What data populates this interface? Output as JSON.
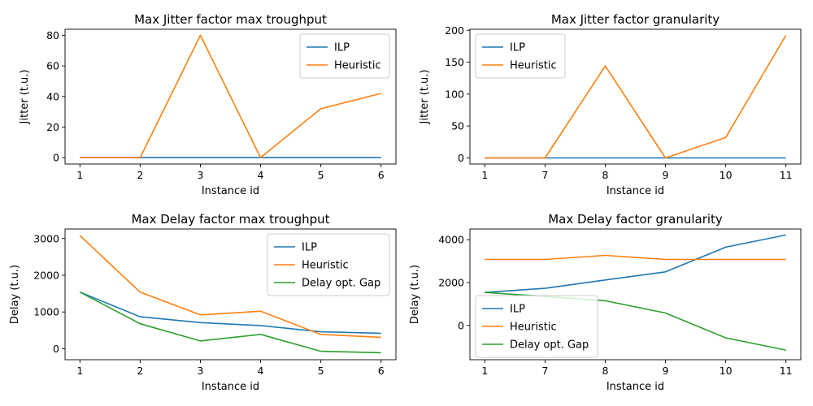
{
  "chart_data": [
    {
      "type": "line",
      "title": "Max Jitter factor max troughput",
      "xlabel": "Instance id",
      "ylabel": "Jitter (t.u.)",
      "x": [
        "1",
        "2",
        "3",
        "4",
        "5",
        "6"
      ],
      "ylim": [
        -4.2,
        84
      ],
      "yticks": [
        0,
        20,
        40,
        60,
        80
      ],
      "legend_position": "upper right",
      "series": [
        {
          "name": "ILP",
          "color": "#1f77b4",
          "values": [
            0,
            0,
            0,
            0,
            0,
            0
          ]
        },
        {
          "name": "Heuristic",
          "color": "#ff7f0e",
          "values": [
            0,
            0,
            80,
            0,
            32,
            42
          ]
        }
      ]
    },
    {
      "type": "line",
      "title": "Max Jitter factor granularity",
      "xlabel": "Instance id",
      "ylabel": "Jitter (t.u.)",
      "x": [
        "1",
        "7",
        "8",
        "9",
        "10",
        "11"
      ],
      "ylim": [
        -9.6,
        201.6
      ],
      "yticks": [
        0,
        50,
        100,
        150,
        200
      ],
      "legend_position": "upper left",
      "series": [
        {
          "name": "ILP",
          "color": "#1f77b4",
          "values": [
            0,
            0,
            0,
            0,
            0,
            0
          ]
        },
        {
          "name": "Heuristic",
          "color": "#ff7f0e",
          "values": [
            0,
            0,
            144,
            0,
            32,
            192
          ]
        }
      ]
    },
    {
      "type": "line",
      "title": "Max Delay factor max troughput",
      "xlabel": "Instance id",
      "ylabel": "Delay (t.u.)",
      "x": [
        "1",
        "2",
        "3",
        "4",
        "5",
        "6"
      ],
      "ylim": [
        -300,
        3260
      ],
      "yticks": [
        0,
        1000,
        2000,
        3000
      ],
      "legend_position": "upper right",
      "series": [
        {
          "name": "ILP",
          "color": "#1f77b4",
          "values": [
            1540,
            870,
            710,
            630,
            460,
            420
          ]
        },
        {
          "name": "Heuristic",
          "color": "#ff7f0e",
          "values": [
            3080,
            1540,
            920,
            1020,
            390,
            310
          ]
        },
        {
          "name": "Delay opt. Gap",
          "color": "#2ca02c",
          "values": [
            1540,
            680,
            210,
            390,
            -70,
            -110
          ]
        }
      ]
    },
    {
      "type": "line",
      "title": "Max Delay factor granularity",
      "xlabel": "Instance id",
      "ylabel": "Delay (t.u.)",
      "x": [
        "1",
        "7",
        "8",
        "9",
        "10",
        "11"
      ],
      "ylim": [
        -1600,
        4500
      ],
      "yticks": [
        0,
        2000,
        4000
      ],
      "legend_position": "center left",
      "series": [
        {
          "name": "ILP",
          "color": "#1f77b4",
          "values": [
            1540,
            1730,
            2120,
            2500,
            3650,
            4220
          ]
        },
        {
          "name": "Heuristic",
          "color": "#ff7f0e",
          "values": [
            3080,
            3080,
            3270,
            3080,
            3080,
            3080
          ]
        },
        {
          "name": "Delay opt. Gap",
          "color": "#2ca02c",
          "values": [
            1540,
            1350,
            1150,
            580,
            -580,
            -1150
          ]
        }
      ]
    }
  ]
}
